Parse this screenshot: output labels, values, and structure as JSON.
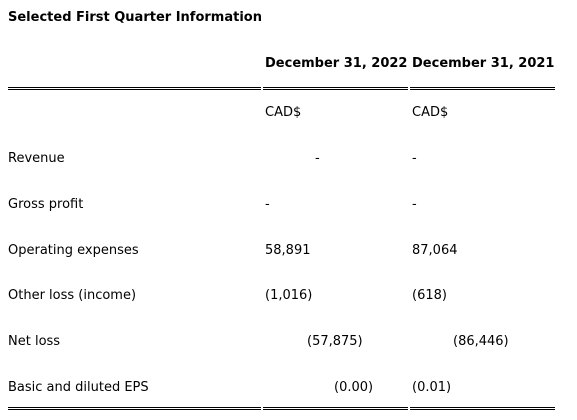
{
  "title": "Selected First Quarter Information",
  "columns": [
    "December 31, 2022",
    "December 31, 2021"
  ],
  "currency": [
    "CAD$",
    "CAD$"
  ],
  "rows": [
    {
      "label": "Revenue",
      "v1": "-",
      "v2": "-"
    },
    {
      "label": "Gross profit",
      "v1": "-",
      "v2": "-"
    },
    {
      "label": "Operating expenses",
      "v1": "58,891",
      "v2": "87,064"
    },
    {
      "label": "Other loss (income)",
      "v1": "(1,016)",
      "v2": "(618)"
    },
    {
      "label": "Net loss",
      "v1": "(57,875)",
      "v2": "(86,446)"
    },
    {
      "label": "Basic and diluted EPS",
      "v1": "(0.00)",
      "v2": "(0.01)"
    }
  ]
}
